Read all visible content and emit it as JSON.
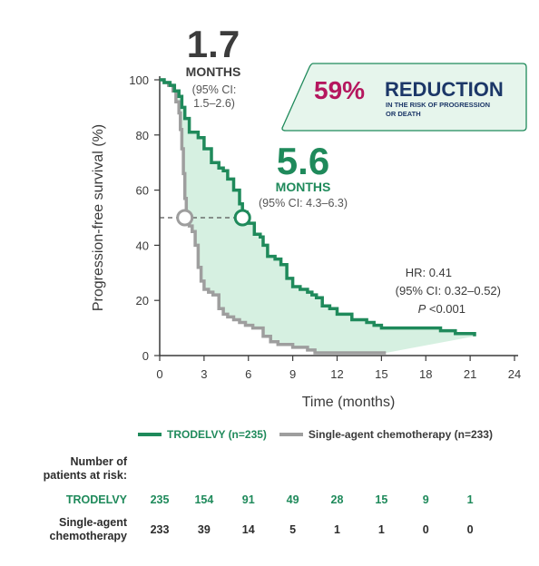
{
  "chart_data": {
    "type": "line",
    "xlabel": "Time (months)",
    "ylabel": "Progression-free survival (%)",
    "xlim": [
      0,
      24
    ],
    "ylim": [
      0,
      100
    ],
    "xticks": [
      0,
      3,
      6,
      9,
      12,
      15,
      18,
      21,
      24
    ],
    "yticks": [
      0,
      20,
      40,
      60,
      80,
      100
    ],
    "median_line_y": 50,
    "series": [
      {
        "name": "TRODELVY (n=235)",
        "color": "#1f8a5b",
        "x": [
          0,
          0.3,
          0.7,
          1.0,
          1.3,
          1.5,
          1.7,
          2.0,
          2.6,
          3.0,
          3.5,
          4.0,
          4.3,
          4.6,
          5.0,
          5.4,
          5.6,
          5.9,
          6.4,
          6.8,
          7.0,
          7.3,
          7.8,
          8.2,
          8.6,
          9.0,
          9.5,
          10.0,
          10.3,
          10.6,
          11.0,
          11.5,
          12.0,
          13.0,
          14.0,
          14.5,
          15.0,
          16.0,
          17.5,
          19.0,
          20.0,
          21.0,
          21.3
        ],
        "y": [
          100,
          99,
          98,
          96,
          94,
          90,
          86,
          81,
          79,
          75,
          70,
          68,
          67,
          64,
          60,
          55,
          52,
          48,
          44,
          43,
          40,
          36,
          35,
          33,
          28,
          25,
          24,
          23,
          22,
          21,
          18,
          17,
          15,
          13,
          12,
          11,
          10,
          10,
          10,
          9,
          8,
          8,
          7
        ]
      },
      {
        "name": "Single-agent chemotherapy (n=233)",
        "color": "#9e9e9e",
        "x": [
          0,
          0.3,
          0.6,
          0.9,
          1.1,
          1.3,
          1.4,
          1.5,
          1.6,
          1.7,
          1.8,
          1.9,
          2.0,
          2.2,
          2.4,
          2.6,
          2.8,
          3.0,
          3.3,
          3.6,
          4.0,
          4.3,
          4.6,
          5.0,
          5.4,
          5.8,
          6.3,
          6.8,
          7.0,
          7.5,
          8.0,
          8.5,
          9.0,
          9.5,
          10.0,
          10.5,
          11.0,
          12.0,
          13.0,
          14.0,
          15.0,
          15.3
        ],
        "y": [
          100,
          99,
          98,
          96,
          92,
          88,
          82,
          75,
          66,
          57,
          51,
          49,
          47,
          45,
          40,
          32,
          27,
          24,
          23,
          22,
          17,
          15,
          14,
          13,
          12,
          11,
          10,
          10,
          7,
          5,
          4,
          4,
          3,
          3,
          2,
          1,
          1,
          1,
          1,
          1,
          1,
          1
        ]
      }
    ],
    "annotations": {
      "chemo_median": {
        "value": "1.7",
        "unit": "MONTHS",
        "ci": "(95% CI:",
        "ci2": "1.5–2.6)",
        "x": 1.7,
        "y": 50
      },
      "trodelvy_median": {
        "value": "5.6",
        "unit": "MONTHS",
        "ci": "(95% CI: 4.3–6.3)",
        "x": 5.6,
        "y": 50
      },
      "hr": {
        "line1": "HR: 0.41",
        "line2": "(95% CI: 0.32–0.52)",
        "line3_p": "P",
        "line3_rest": " <0.001"
      },
      "reduction": {
        "pct": "59%",
        "word": "REDUCTION",
        "sub1": "IN THE RISK OF PROGRESSION",
        "sub2": "OR DEATH"
      }
    }
  },
  "colors": {
    "green": "#1f8a5b",
    "magenta": "#b5175e",
    "navy": "#1c3768",
    "gray": "#9e9e9e",
    "fill": "#d6f0e1",
    "badge_bg": "#e6f5ec",
    "badge_border": "#1f8a5b"
  },
  "legend": {
    "trodelvy": "TRODELVY (n=235)",
    "chemo": "Single-agent chemotherapy (n=233)"
  },
  "risk_table": {
    "header_line1": "Number of",
    "header_line2": "patients at risk:",
    "times": [
      0,
      3,
      6,
      9,
      12,
      15,
      18,
      21
    ],
    "rows": [
      {
        "label": "TRODELVY",
        "label2": "",
        "values": [
          "235",
          "154",
          "91",
          "49",
          "28",
          "15",
          "9",
          "1"
        ]
      },
      {
        "label": "Single-agent",
        "label2": "chemotherapy",
        "values": [
          "233",
          "39",
          "14",
          "5",
          "1",
          "1",
          "0",
          "0"
        ]
      }
    ]
  }
}
